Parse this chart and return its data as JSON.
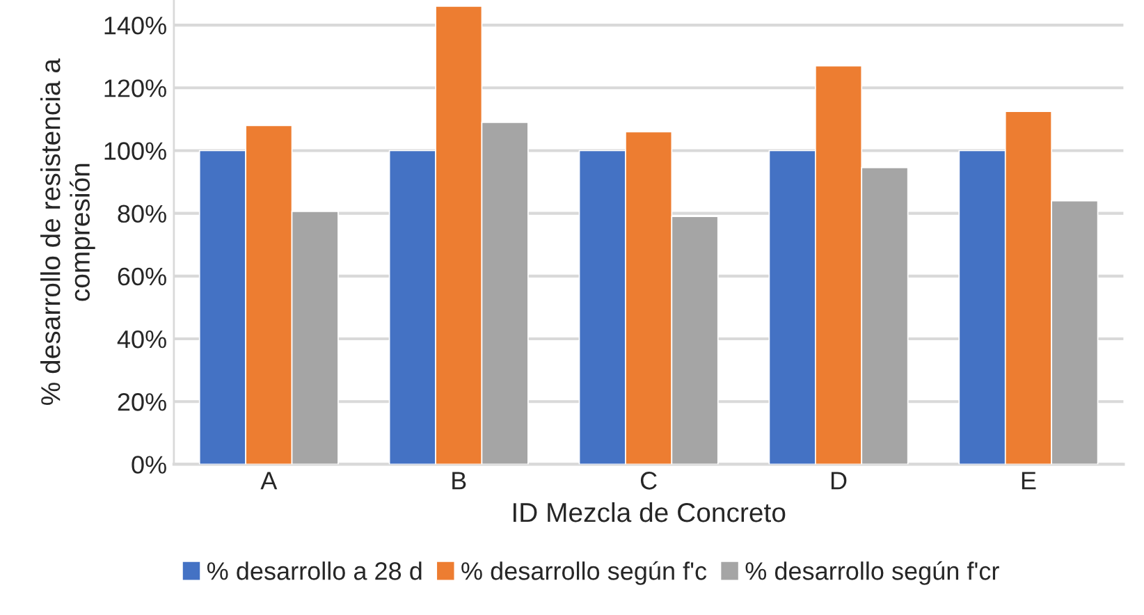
{
  "chart_data": {
    "type": "bar",
    "xlabel": "ID Mezcla de Concreto",
    "ylabel": "% desarrollo de resistencia a compresión",
    "categories": [
      "A",
      "B",
      "C",
      "D",
      "E"
    ],
    "series": [
      {
        "name": "% desarrollo a 28 d",
        "color": "#4472c4",
        "values": [
          100,
          100,
          100,
          100,
          100
        ]
      },
      {
        "name": "% desarrollo según f'c",
        "color": "#ed7d31",
        "values": [
          108,
          146,
          106,
          127,
          112.5
        ]
      },
      {
        "name": "% desarrollo según f'cr",
        "color": "#a5a5a5",
        "values": [
          80.6,
          109,
          79,
          94.6,
          84
        ]
      }
    ],
    "ylim": [
      0,
      148
    ],
    "yticks": [
      {
        "value": 0,
        "label": "0%"
      },
      {
        "value": 20,
        "label": "20%"
      },
      {
        "value": 40,
        "label": "40%"
      },
      {
        "value": 60,
        "label": "60%"
      },
      {
        "value": 80,
        "label": "80%"
      },
      {
        "value": 100,
        "label": "100%"
      },
      {
        "value": 120,
        "label": "120%"
      },
      {
        "value": 140,
        "label": "140%"
      }
    ],
    "grid": "y",
    "legend": "bottom"
  }
}
